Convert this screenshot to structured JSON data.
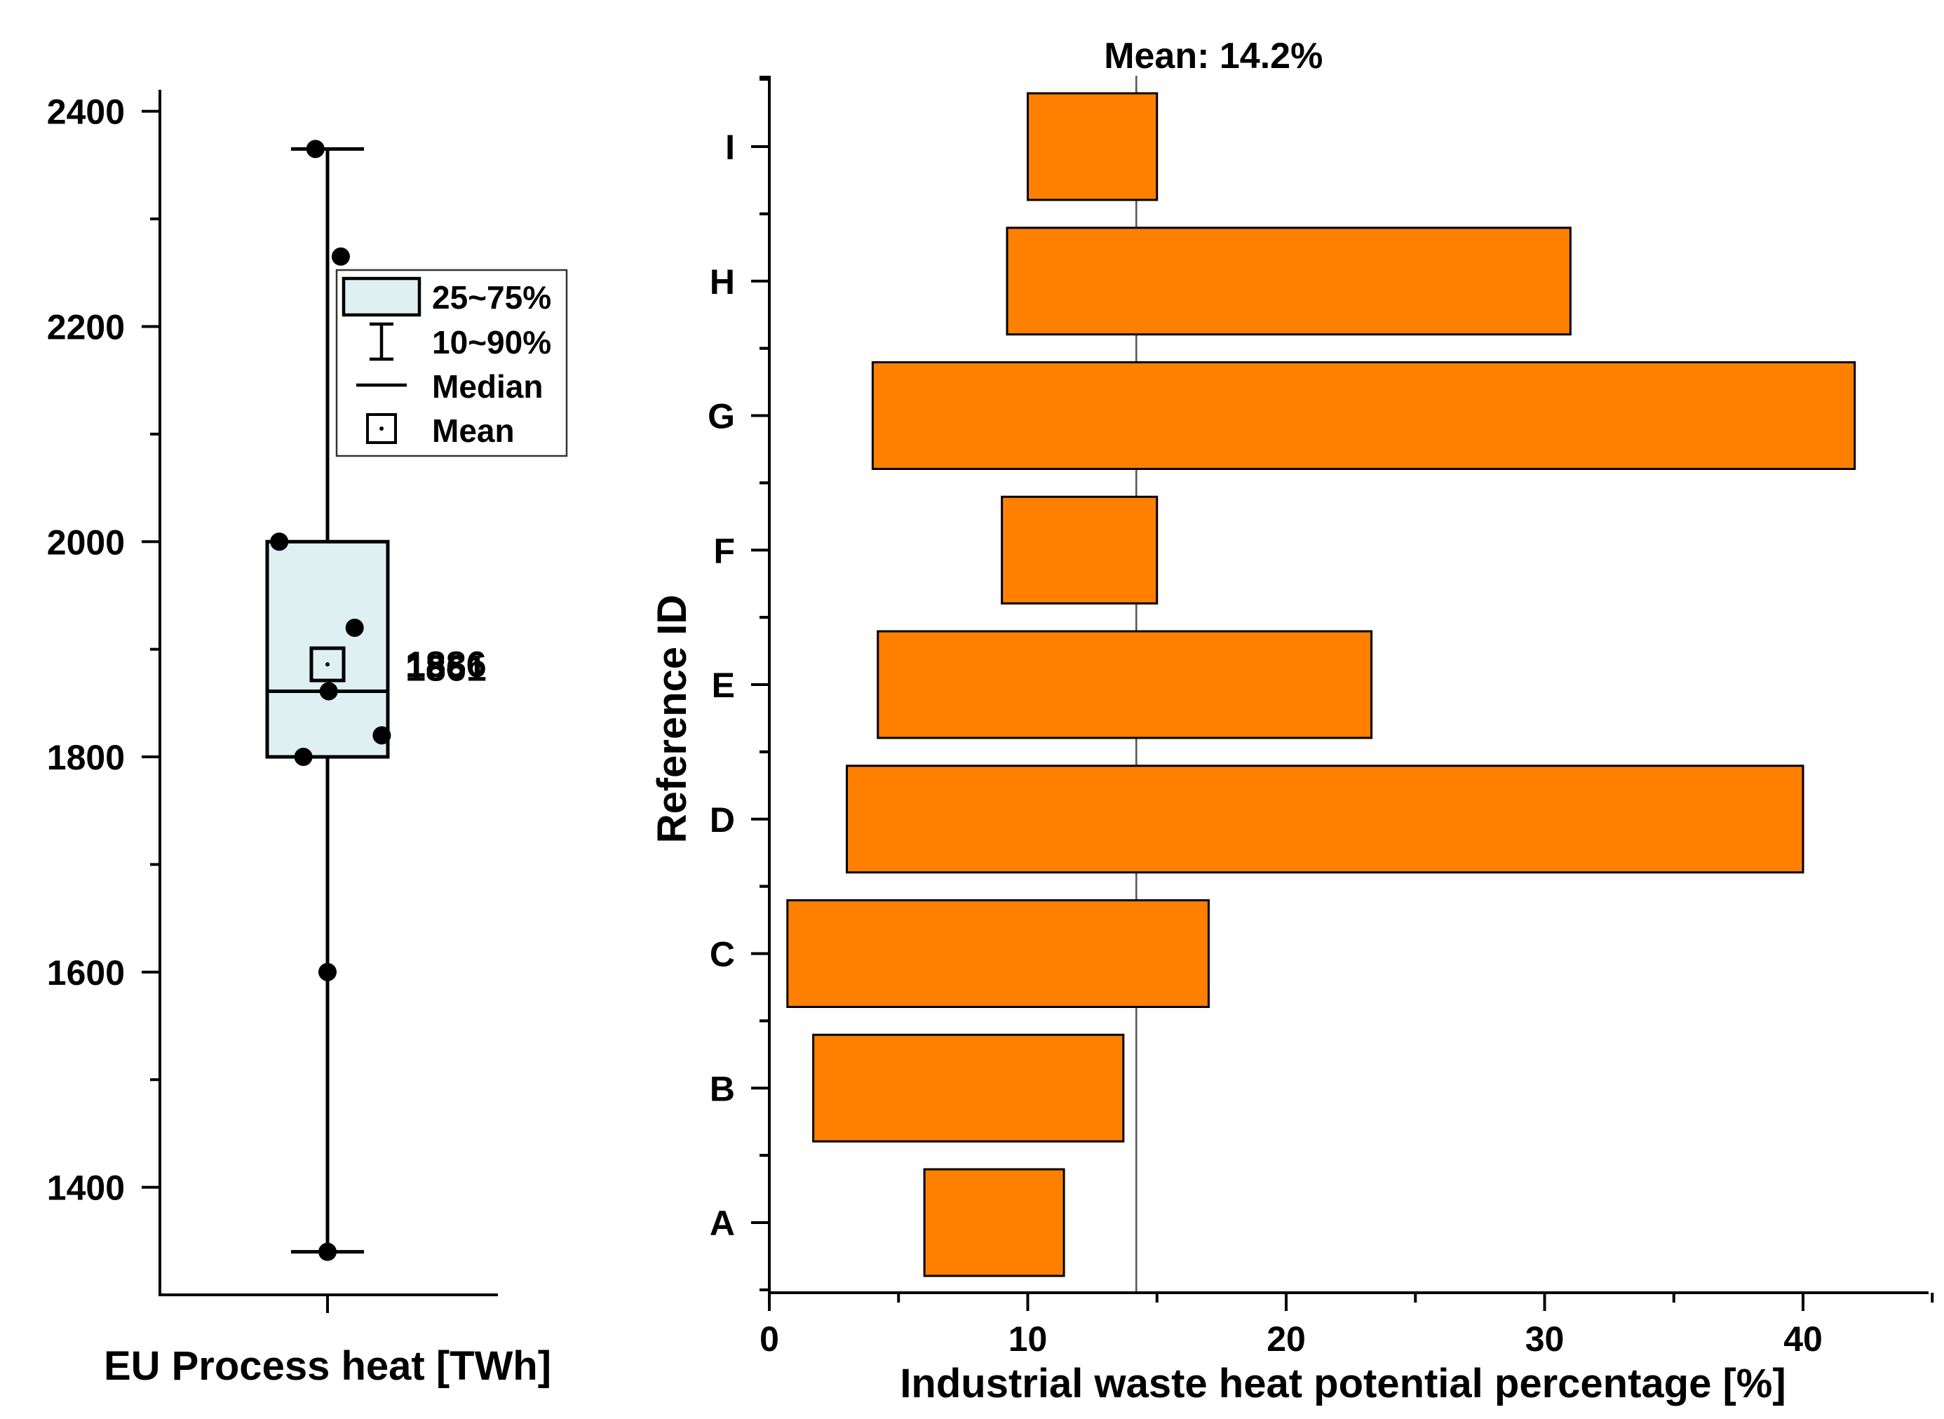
{
  "chart_data": [
    {
      "type": "box",
      "xlabel": "EU Process heat [TWh]",
      "ylim": [
        1300,
        2420
      ],
      "yticks": [
        1400,
        1600,
        1800,
        2000,
        2200,
        2400
      ],
      "box": {
        "q1": 1800,
        "median": 1861,
        "q3": 2000,
        "whisker_low": 1340,
        "whisker_high": 2365,
        "mean": 1886
      },
      "points": [
        {
          "value": 2365,
          "offset": -0.2
        },
        {
          "value": 2265,
          "offset": 0.22
        },
        {
          "value": 2000,
          "offset": -0.8
        },
        {
          "value": 1920,
          "offset": 0.45
        },
        {
          "value": 1861,
          "offset": 0.02
        },
        {
          "value": 1820,
          "offset": 0.9
        },
        {
          "value": 1800,
          "offset": -0.4
        },
        {
          "value": 1600,
          "offset": 0.0
        },
        {
          "value": 1340,
          "offset": 0.0
        }
      ],
      "annotations": {
        "mean_label": "1886",
        "median_label": "1861"
      },
      "legend": [
        {
          "symbol": "box",
          "label": "25~75%"
        },
        {
          "symbol": "whisker",
          "label": "10~90%"
        },
        {
          "symbol": "line",
          "label": "Median"
        },
        {
          "symbol": "mean",
          "label": "Mean"
        }
      ],
      "legend_position": "top-right",
      "colors": {
        "box_fill": "#dff0f3",
        "stroke": "#000000"
      }
    },
    {
      "type": "floating-bar",
      "orientation": "horizontal",
      "xlabel": "Industrial waste heat potential percentage [%]",
      "ylabel": "Reference ID",
      "xlim": [
        0,
        45
      ],
      "xticks": [
        0,
        10,
        20,
        30,
        40
      ],
      "categories": [
        "A",
        "B",
        "C",
        "D",
        "E",
        "F",
        "G",
        "H",
        "I"
      ],
      "ranges": [
        [
          6.0,
          11.4
        ],
        [
          1.7,
          13.7
        ],
        [
          0.7,
          17.0
        ],
        [
          3.0,
          40.0
        ],
        [
          4.2,
          23.3
        ],
        [
          9.0,
          15.0
        ],
        [
          4.0,
          42.0
        ],
        [
          9.2,
          31.0
        ],
        [
          10.0,
          15.0
        ]
      ],
      "mean_line": {
        "value": 14.2,
        "label": "Mean: 14.2%"
      },
      "colors": {
        "bar_fill": "#ff8000",
        "stroke": "#000000",
        "mean_line": "#555555"
      }
    }
  ]
}
